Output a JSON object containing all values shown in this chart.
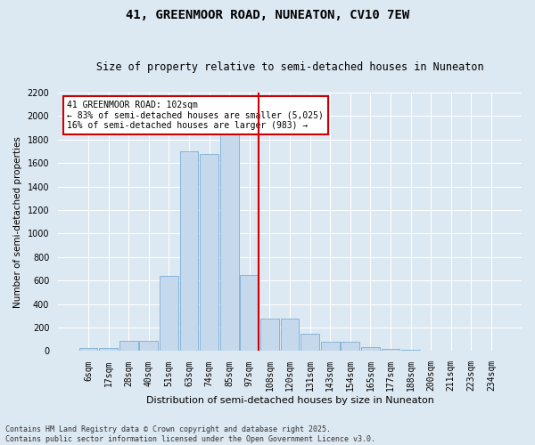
{
  "title": "41, GREENMOOR ROAD, NUNEATON, CV10 7EW",
  "subtitle": "Size of property relative to semi-detached houses in Nuneaton",
  "xlabel": "Distribution of semi-detached houses by size in Nuneaton",
  "ylabel": "Number of semi-detached properties",
  "footer_line1": "Contains HM Land Registry data © Crown copyright and database right 2025.",
  "footer_line2": "Contains public sector information licensed under the Open Government Licence v3.0.",
  "annotation_line1": "41 GREENMOOR ROAD: 102sqm",
  "annotation_line2": "← 83% of semi-detached houses are smaller (5,025)",
  "annotation_line3": "16% of semi-detached houses are larger (983) →",
  "bar_labels": [
    "6sqm",
    "17sqm",
    "28sqm",
    "40sqm",
    "51sqm",
    "63sqm",
    "74sqm",
    "85sqm",
    "97sqm",
    "108sqm",
    "120sqm",
    "131sqm",
    "143sqm",
    "154sqm",
    "165sqm",
    "177sqm",
    "188sqm",
    "200sqm",
    "211sqm",
    "223sqm",
    "234sqm"
  ],
  "bar_values": [
    30,
    30,
    90,
    90,
    640,
    1700,
    1680,
    2100,
    650,
    280,
    280,
    150,
    80,
    80,
    35,
    15,
    10,
    5,
    5,
    5,
    5
  ],
  "bar_color": "#c5d8ec",
  "bar_edge_color": "#7aafd4",
  "vline_color": "#cc0000",
  "vline_x_index": 8,
  "annotation_box_color": "#cc0000",
  "ylim": [
    0,
    2200
  ],
  "ytick_step": 200,
  "background_color": "#dce8f2",
  "plot_background": "#dce8f2",
  "grid_color": "#ffffff",
  "title_fontsize": 10,
  "subtitle_fontsize": 8.5,
  "axis_label_fontsize": 8,
  "ylabel_fontsize": 7.5,
  "tick_fontsize": 7,
  "annotation_fontsize": 7,
  "footer_fontsize": 6
}
